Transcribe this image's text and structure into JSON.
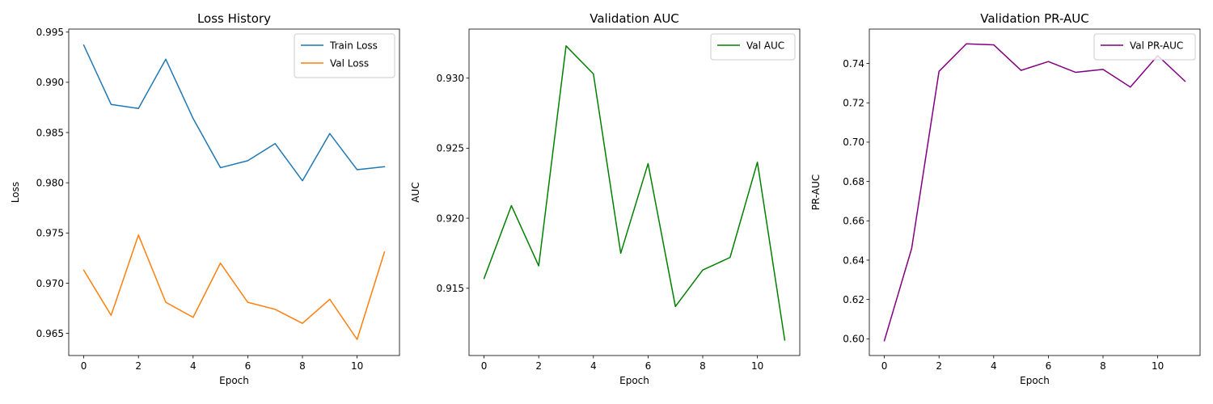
{
  "chart_data": [
    {
      "type": "line",
      "title": "Loss History",
      "xlabel": "Epoch",
      "ylabel": "Loss",
      "x": [
        0,
        1,
        2,
        3,
        4,
        5,
        6,
        7,
        8,
        9,
        10,
        11
      ],
      "xlim": [
        -0.55,
        11.55
      ],
      "xticks": [
        0,
        2,
        4,
        6,
        8,
        10
      ],
      "ylim": [
        0.9628,
        0.9953
      ],
      "yticks": [
        0.965,
        0.97,
        0.975,
        0.98,
        0.985,
        0.99,
        0.995
      ],
      "ytick_decimals": 3,
      "grid": false,
      "legend": "top-right",
      "series": [
        {
          "name": "Train Loss",
          "color": "#1f77b4",
          "values": [
            0.9937,
            0.9878,
            0.9874,
            0.9923,
            0.9864,
            0.9815,
            0.9822,
            0.9839,
            0.9802,
            0.9849,
            0.9813,
            0.9816
          ]
        },
        {
          "name": "Val Loss",
          "color": "#ff7f0e",
          "values": [
            0.9713,
            0.9668,
            0.9748,
            0.9681,
            0.9666,
            0.972,
            0.9681,
            0.9674,
            0.966,
            0.9684,
            0.9644,
            0.9731
          ]
        }
      ]
    },
    {
      "type": "line",
      "title": "Validation AUC",
      "xlabel": "Epoch",
      "ylabel": "AUC",
      "x": [
        0,
        1,
        2,
        3,
        4,
        5,
        6,
        7,
        8,
        9,
        10,
        11
      ],
      "xlim": [
        -0.55,
        11.55
      ],
      "xticks": [
        0,
        2,
        4,
        6,
        8,
        10
      ],
      "ylim": [
        0.9102,
        0.9335
      ],
      "yticks": [
        0.915,
        0.92,
        0.925,
        0.93
      ],
      "ytick_decimals": 3,
      "grid": false,
      "legend": "top-right",
      "series": [
        {
          "name": "Val AUC",
          "color": "#008000",
          "values": [
            0.9157,
            0.9209,
            0.9166,
            0.9323,
            0.9303,
            0.9175,
            0.9239,
            0.9137,
            0.9163,
            0.9172,
            0.924,
            0.9113
          ]
        }
      ]
    },
    {
      "type": "line",
      "title": "Validation PR-AUC",
      "xlabel": "Epoch",
      "ylabel": "PR-AUC",
      "x": [
        0,
        1,
        2,
        3,
        4,
        5,
        6,
        7,
        8,
        9,
        10,
        11
      ],
      "xlim": [
        -0.55,
        11.55
      ],
      "xticks": [
        0,
        2,
        4,
        6,
        8,
        10
      ],
      "ylim": [
        0.5915,
        0.7575
      ],
      "yticks": [
        0.6,
        0.62,
        0.64,
        0.66,
        0.68,
        0.7,
        0.72,
        0.74
      ],
      "ytick_decimals": 2,
      "grid": false,
      "legend": "top-right",
      "series": [
        {
          "name": "Val PR-AUC",
          "color": "#800080",
          "values": [
            0.599,
            0.646,
            0.736,
            0.75,
            0.7495,
            0.7365,
            0.741,
            0.7355,
            0.737,
            0.728,
            0.744,
            0.731
          ]
        }
      ]
    }
  ]
}
